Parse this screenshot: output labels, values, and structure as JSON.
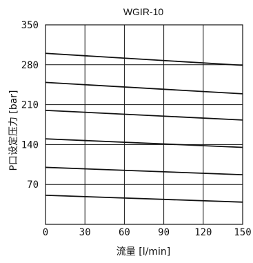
{
  "chart_data": {
    "type": "line",
    "title": "WGIR-10",
    "xlabel": "流量 [l/min]",
    "ylabel": "P口设定压力 [bar]",
    "xlim": [
      0,
      150
    ],
    "ylim": [
      0,
      350
    ],
    "xticks": [
      0,
      30,
      60,
      90,
      120,
      150
    ],
    "yticks": [
      70,
      140,
      210,
      280,
      350
    ],
    "xtick_labels": [
      "0",
      "30",
      "60",
      "90",
      "120",
      "150"
    ],
    "ytick_labels": [
      "70",
      "140",
      "210",
      "280",
      "350"
    ],
    "grid": true,
    "colors": {
      "line": "#111111",
      "grid": "#111111",
      "background": "#ffffff"
    },
    "series": [
      {
        "x": [
          0,
          150
        ],
        "values": [
          300,
          279
        ]
      },
      {
        "x": [
          0,
          150
        ],
        "values": [
          249,
          229
        ]
      },
      {
        "x": [
          0,
          150
        ],
        "values": [
          200,
          183
        ]
      },
      {
        "x": [
          0,
          150
        ],
        "values": [
          150,
          135
        ]
      },
      {
        "x": [
          0,
          150
        ],
        "values": [
          100,
          87
        ]
      },
      {
        "x": [
          0,
          150
        ],
        "values": [
          51,
          39
        ]
      }
    ]
  }
}
